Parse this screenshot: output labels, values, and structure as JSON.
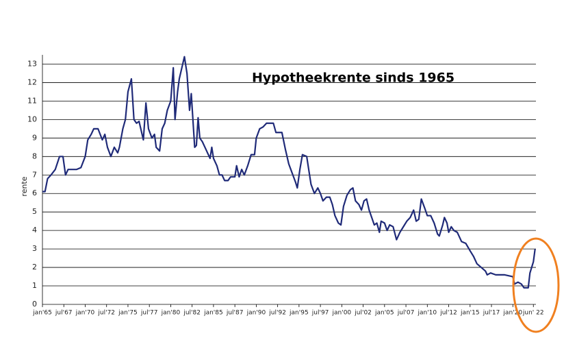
{
  "chart_data": {
    "type": "line",
    "title": "Hypotheekrente sinds 1965",
    "ylabel": "rente",
    "x": [
      1965,
      1965.3,
      1965.6,
      1966,
      1966.5,
      1967,
      1967.4,
      1967.7,
      1968,
      1969,
      1969.5,
      1970,
      1970.3,
      1970.7,
      1971,
      1971.5,
      1972,
      1972.3,
      1972.6,
      1973,
      1973.4,
      1973.8,
      1974,
      1974.4,
      1974.7,
      1975,
      1975.4,
      1975.7,
      1976,
      1976.3,
      1976.8,
      1977.1,
      1977.4,
      1977.8,
      1978.1,
      1978.3,
      1978.7,
      1979,
      1979.3,
      1979.6,
      1980,
      1980.3,
      1980.5,
      1980.8,
      1981,
      1981.3,
      1981.6,
      1981.9,
      1982.2,
      1982.4,
      1982.8,
      1983,
      1983.2,
      1983.4,
      1983.7,
      1984,
      1984.3,
      1984.6,
      1984.8,
      1985,
      1985.4,
      1985.7,
      1986,
      1986.3,
      1986.7,
      1987,
      1987.5,
      1987.7,
      1988,
      1988.3,
      1988.6,
      1989,
      1989.4,
      1989.8,
      1990,
      1990.4,
      1990.8,
      1991.2,
      1992,
      1992.3,
      1993,
      1993.4,
      1993.8,
      1994.2,
      1994.6,
      1994.8,
      1995.1,
      1995.4,
      1995.9,
      1996.2,
      1996.4,
      1996.8,
      1997.2,
      1997.5,
      1997.8,
      1998.2,
      1998.6,
      1998.9,
      1999.2,
      1999.6,
      1999.9,
      2000.2,
      2000.6,
      2001,
      2001.3,
      2001.6,
      2002,
      2002.3,
      2002.6,
      2002.9,
      2003.2,
      2003.5,
      2003.8,
      2004.1,
      2004.4,
      2004.6,
      2005,
      2005.3,
      2005.6,
      2006,
      2006.4,
      2006.8,
      2007.2,
      2007.6,
      2008,
      2008.4,
      2008.7,
      2009,
      2009.3,
      2009.7,
      2010,
      2010.4,
      2010.8,
      2011.2,
      2011.4,
      2011.8,
      2012,
      2012.3,
      2012.5,
      2012.8,
      2013.1,
      2013.5,
      2014,
      2014.5,
      2015,
      2015.4,
      2015.8,
      2016.3,
      2016.8,
      2017,
      2017.4,
      2018,
      2019,
      2020,
      2020.2,
      2020.6,
      2021,
      2021.3,
      2021.8,
      2022,
      2022.4,
      2022.6
    ],
    "values": [
      6.1,
      6.1,
      6.8,
      7.0,
      7.3,
      8.0,
      8.0,
      7.0,
      7.3,
      7.3,
      7.4,
      8.0,
      8.9,
      9.2,
      9.5,
      9.5,
      8.9,
      9.2,
      8.5,
      8.0,
      8.5,
      8.2,
      8.5,
      9.5,
      10.0,
      11.5,
      12.2,
      10.0,
      9.8,
      9.9,
      8.9,
      10.9,
      9.5,
      9.0,
      9.2,
      8.5,
      8.3,
      9.5,
      9.8,
      10.5,
      11.0,
      12.8,
      10.0,
      11.5,
      12.2,
      12.8,
      13.4,
      12.5,
      10.5,
      11.4,
      8.5,
      8.6,
      10.1,
      9.0,
      8.8,
      8.5,
      8.2,
      7.9,
      8.5,
      7.9,
      7.5,
      7.0,
      7.0,
      6.7,
      6.7,
      6.9,
      6.9,
      7.5,
      6.9,
      7.3,
      7.0,
      7.5,
      8.1,
      8.1,
      9.0,
      9.5,
      9.6,
      9.8,
      9.8,
      9.3,
      9.3,
      8.4,
      7.6,
      7.1,
      6.6,
      6.3,
      7.3,
      8.1,
      8.0,
      7.1,
      6.5,
      6.0,
      6.3,
      6.0,
      5.6,
      5.8,
      5.8,
      5.4,
      4.8,
      4.4,
      4.3,
      5.3,
      5.9,
      6.2,
      6.3,
      5.6,
      5.4,
      5.1,
      5.6,
      5.7,
      5.1,
      4.7,
      4.3,
      4.4,
      3.9,
      4.5,
      4.4,
      4.0,
      4.3,
      4.2,
      3.5,
      3.9,
      4.2,
      4.5,
      4.7,
      5.1,
      4.5,
      4.6,
      5.7,
      5.2,
      4.8,
      4.8,
      4.4,
      3.8,
      3.7,
      4.3,
      4.7,
      4.4,
      3.9,
      4.2,
      4.0,
      3.9,
      3.4,
      3.3,
      2.9,
      2.6,
      2.2,
      2.0,
      1.8,
      1.6,
      1.7,
      1.6,
      1.6,
      1.5,
      1.1,
      1.2,
      1.1,
      0.9,
      0.9,
      1.7,
      2.3,
      3.0
    ],
    "color": "#1f2a78",
    "xlim": [
      1965,
      2022.7
    ],
    "xticks": [
      {
        "value": 1965,
        "label": "jan'65"
      },
      {
        "value": 1967.5,
        "label": "jul'67"
      },
      {
        "value": 1970,
        "label": "jan'70"
      },
      {
        "value": 1972.5,
        "label": "jul'72"
      },
      {
        "value": 1975,
        "label": "jan'75"
      },
      {
        "value": 1977.5,
        "label": "jul'77"
      },
      {
        "value": 1980,
        "label": "jan'80"
      },
      {
        "value": 1982.5,
        "label": "jul'82"
      },
      {
        "value": 1985,
        "label": "jan'85"
      },
      {
        "value": 1987.5,
        "label": "jul'87"
      },
      {
        "value": 1990,
        "label": "jan'90"
      },
      {
        "value": 1992.5,
        "label": "jul'92"
      },
      {
        "value": 1995,
        "label": "jan'95"
      },
      {
        "value": 1997.5,
        "label": "jul'97"
      },
      {
        "value": 2000,
        "label": "jan'00"
      },
      {
        "value": 2002.5,
        "label": "jul'02"
      },
      {
        "value": 2005,
        "label": "jan'05"
      },
      {
        "value": 2007.5,
        "label": "jul'07"
      },
      {
        "value": 2010,
        "label": "jan'10"
      },
      {
        "value": 2012.5,
        "label": "jul'12"
      },
      {
        "value": 2015,
        "label": "jan'15"
      },
      {
        "value": 2017.5,
        "label": "jul'17"
      },
      {
        "value": 2020,
        "label": "jan'20"
      },
      {
        "value": 2022.4,
        "label": "jun' 22"
      }
    ],
    "ylim": [
      0,
      13.5
    ],
    "yticks": [
      0,
      1,
      2,
      3,
      4,
      5,
      6,
      7,
      8,
      9,
      10,
      11,
      12,
      13
    ],
    "grid": true
  }
}
